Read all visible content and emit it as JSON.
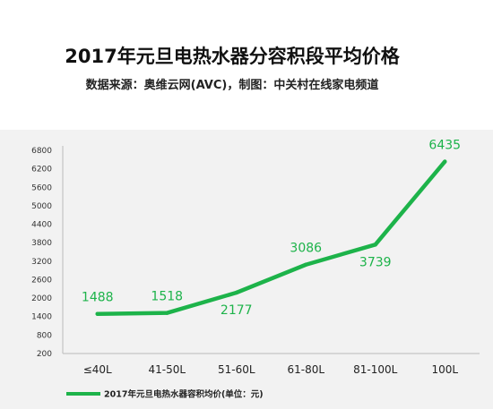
{
  "chart_data": {
    "type": "line",
    "title": "2017年元旦电热水器分容积段平均价格",
    "subtitle": "数据来源：奥维云网(AVC)，制图：中关村在线家电频道",
    "categories": [
      "≤40L",
      "41-50L",
      "51-60L",
      "61-80L",
      "81-100L",
      "100L"
    ],
    "series": [
      {
        "name": "2017年元旦电热水器容积均价(单位：元)",
        "values": [
          1488,
          1518,
          2177,
          3086,
          3739,
          6435
        ]
      }
    ],
    "data_labels": [
      "1488",
      "1518",
      "2177",
      "3086",
      "3739",
      "6435"
    ],
    "ylim": [
      200,
      6800
    ],
    "yticks": [
      "200",
      "800",
      "1400",
      "2000",
      "2600",
      "3200",
      "3800",
      "4400",
      "5000",
      "5600",
      "6200",
      "6800"
    ],
    "grid": false,
    "legend": "bottom-left",
    "color": "#1db34a"
  }
}
